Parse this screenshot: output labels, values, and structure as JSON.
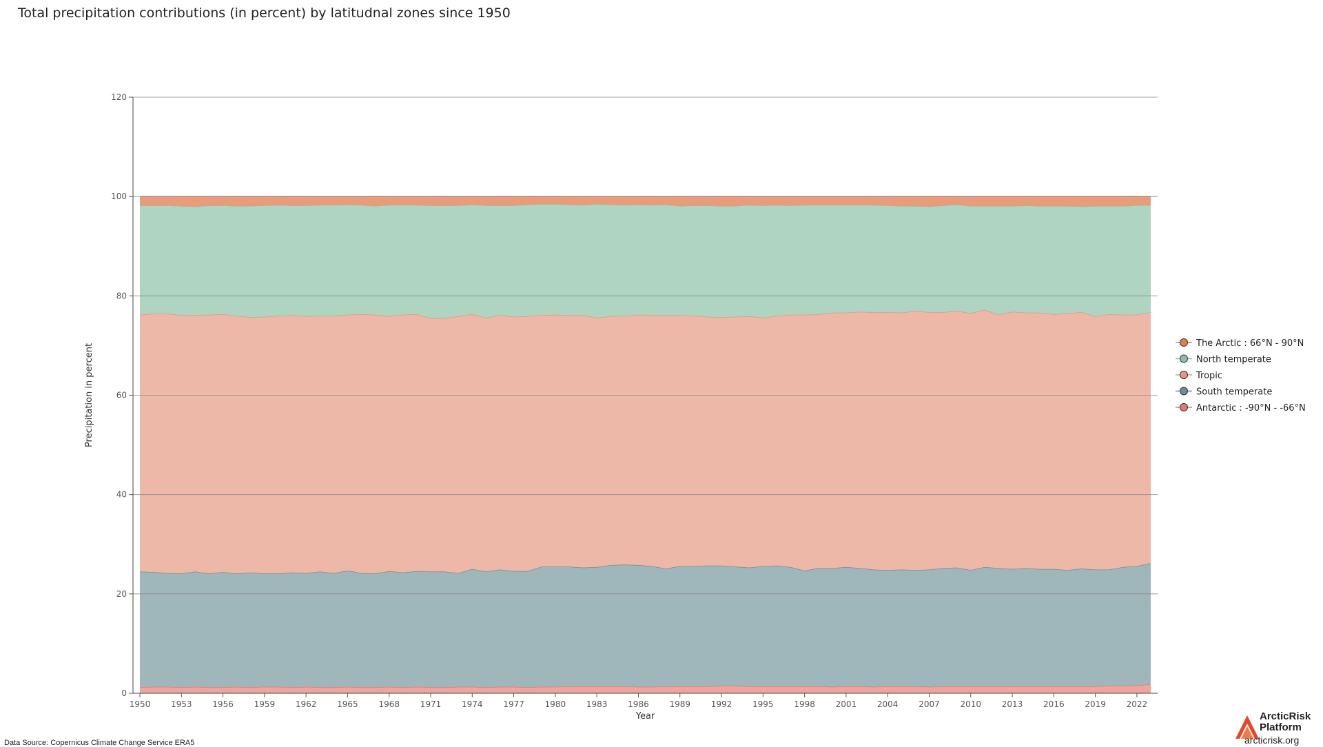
{
  "title": "Total precipitation contributions (in percent) by latitudnal zones since 1950",
  "source": "Data Source: Copernicus Climate Change Service ERA5",
  "brand": {
    "name_line1": "ArcticRisk",
    "name_line2": "Platform",
    "url": "arcticrisk.org"
  },
  "chart_data": {
    "type": "area",
    "stacked": true,
    "title": "Total precipitation contributions (in percent) by latitudnal zones since 1950",
    "xlabel": "Year",
    "ylabel": "Precipitation in percent",
    "xlim": [
      1950,
      2023
    ],
    "ylim": [
      0,
      120
    ],
    "yticks": [
      0,
      20,
      40,
      60,
      80,
      100,
      120
    ],
    "xticks": [
      1950,
      1953,
      1956,
      1959,
      1962,
      1965,
      1968,
      1971,
      1974,
      1977,
      1980,
      1983,
      1986,
      1989,
      1992,
      1995,
      1998,
      2001,
      2004,
      2007,
      2010,
      2013,
      2016,
      2019,
      2022
    ],
    "grid": true,
    "legend_position": "right",
    "x": [
      1950,
      1951,
      1952,
      1953,
      1954,
      1955,
      1956,
      1957,
      1958,
      1959,
      1960,
      1961,
      1962,
      1963,
      1964,
      1965,
      1966,
      1967,
      1968,
      1969,
      1970,
      1971,
      1972,
      1973,
      1974,
      1975,
      1976,
      1977,
      1978,
      1979,
      1980,
      1981,
      1982,
      1983,
      1984,
      1985,
      1986,
      1987,
      1988,
      1989,
      1990,
      1991,
      1992,
      1993,
      1994,
      1995,
      1996,
      1997,
      1998,
      1999,
      2000,
      2001,
      2002,
      2003,
      2004,
      2005,
      2006,
      2007,
      2008,
      2009,
      2010,
      2011,
      2012,
      2013,
      2014,
      2015,
      2016,
      2017,
      2018,
      2019,
      2020,
      2021,
      2022,
      2023
    ],
    "series": [
      {
        "name": "Antarctic : -90°N - -66°N",
        "color": "#e07b72",
        "fill": "#f0a49d",
        "values": [
          1.2,
          1.3,
          1.3,
          1.2,
          1.3,
          1.2,
          1.2,
          1.3,
          1.2,
          1.3,
          1.3,
          1.2,
          1.3,
          1.2,
          1.2,
          1.3,
          1.2,
          1.2,
          1.3,
          1.2,
          1.3,
          1.2,
          1.2,
          1.3,
          1.3,
          1.2,
          1.3,
          1.3,
          1.2,
          1.3,
          1.3,
          1.4,
          1.4,
          1.4,
          1.4,
          1.4,
          1.3,
          1.3,
          1.4,
          1.4,
          1.4,
          1.4,
          1.5,
          1.5,
          1.4,
          1.4,
          1.4,
          1.4,
          1.4,
          1.4,
          1.3,
          1.4,
          1.4,
          1.3,
          1.4,
          1.4,
          1.4,
          1.3,
          1.4,
          1.4,
          1.4,
          1.4,
          1.4,
          1.4,
          1.4,
          1.4,
          1.4,
          1.4,
          1.4,
          1.4,
          1.5,
          1.5,
          1.6,
          1.8
        ]
      },
      {
        "name": "South temperate",
        "color": "#6e8f96",
        "fill": "#9fb6ba",
        "values": [
          23.3,
          23.1,
          22.9,
          22.9,
          23.2,
          22.9,
          23.2,
          22.8,
          23.1,
          22.8,
          22.8,
          23.1,
          22.9,
          23.3,
          23.0,
          23.4,
          23.0,
          22.9,
          23.3,
          23.1,
          23.3,
          23.3,
          23.3,
          22.9,
          23.7,
          23.3,
          23.6,
          23.3,
          23.4,
          24.2,
          24.2,
          24.1,
          23.9,
          24.0,
          24.4,
          24.5,
          24.5,
          24.3,
          23.7,
          24.2,
          24.2,
          24.3,
          24.2,
          24.0,
          23.9,
          24.2,
          24.3,
          24.0,
          23.3,
          23.8,
          23.9,
          24.0,
          23.8,
          23.6,
          23.4,
          23.5,
          23.4,
          23.6,
          23.8,
          23.9,
          23.4,
          24.0,
          23.8,
          23.6,
          23.8,
          23.6,
          23.6,
          23.4,
          23.7,
          23.5,
          23.4,
          23.9,
          24.0,
          24.4
        ]
      },
      {
        "name": "Tropic",
        "color": "#e6957e",
        "fill": "#edb8a8",
        "values": [
          51.7,
          52.0,
          52.2,
          52.0,
          51.6,
          52.1,
          51.9,
          51.9,
          51.4,
          51.7,
          51.9,
          51.8,
          51.7,
          51.5,
          51.8,
          51.5,
          52.1,
          52.1,
          51.3,
          51.9,
          51.7,
          51.0,
          51.0,
          51.7,
          51.3,
          51.1,
          51.2,
          51.2,
          51.3,
          50.6,
          50.7,
          50.6,
          50.8,
          50.2,
          50.1,
          50.1,
          50.4,
          50.5,
          51.0,
          50.5,
          50.4,
          50.1,
          50.0,
          50.3,
          50.6,
          50.0,
          50.3,
          50.8,
          51.5,
          51.1,
          51.4,
          51.2,
          51.6,
          51.8,
          51.9,
          51.7,
          52.2,
          51.8,
          51.5,
          51.7,
          51.7,
          51.8,
          51.0,
          51.8,
          51.4,
          51.6,
          51.3,
          51.7,
          51.6,
          51.0,
          51.4,
          50.8,
          50.6,
          50.5
        ]
      },
      {
        "name": "North temperate",
        "color": "#86c4a8",
        "fill": "#afd4c2",
        "values": [
          22.0,
          21.8,
          21.8,
          22.0,
          21.9,
          22.0,
          21.9,
          22.1,
          22.4,
          22.4,
          22.3,
          22.1,
          22.3,
          22.3,
          22.3,
          22.2,
          22.0,
          21.9,
          22.4,
          22.1,
          22.0,
          22.7,
          22.7,
          22.3,
          22.1,
          22.6,
          22.1,
          22.4,
          22.5,
          22.4,
          22.3,
          22.3,
          22.2,
          22.9,
          22.5,
          22.3,
          22.2,
          22.2,
          22.3,
          22.0,
          22.2,
          22.4,
          22.4,
          22.3,
          22.4,
          22.6,
          22.3,
          22.0,
          22.1,
          22.0,
          21.7,
          21.7,
          21.5,
          21.6,
          21.5,
          21.5,
          21.1,
          21.3,
          21.5,
          21.4,
          21.6,
          20.9,
          21.9,
          21.3,
          21.6,
          21.5,
          21.8,
          21.6,
          21.3,
          22.2,
          21.8,
          21.9,
          22.0,
          21.6
        ]
      },
      {
        "name": "The Arctic : 66°N - 90°N",
        "color": "#e07e52",
        "fill": "#eb9a7a",
        "values": [
          1.8,
          1.8,
          1.8,
          1.9,
          2.0,
          1.8,
          1.8,
          1.9,
          1.9,
          1.8,
          1.7,
          1.8,
          1.8,
          1.7,
          1.7,
          1.6,
          1.7,
          1.9,
          1.7,
          1.7,
          1.7,
          1.8,
          1.8,
          1.8,
          1.6,
          1.8,
          1.8,
          1.8,
          1.6,
          1.5,
          1.5,
          1.6,
          1.7,
          1.5,
          1.6,
          1.7,
          1.6,
          1.7,
          1.6,
          1.9,
          1.8,
          1.8,
          1.9,
          1.9,
          1.7,
          1.8,
          1.7,
          1.8,
          1.7,
          1.7,
          1.7,
          1.7,
          1.7,
          1.7,
          1.8,
          1.9,
          1.9,
          2.0,
          1.8,
          1.6,
          1.9,
          1.9,
          1.9,
          1.9,
          1.8,
          1.9,
          1.9,
          1.9,
          2.0,
          1.9,
          1.9,
          1.9,
          1.8,
          1.7
        ]
      }
    ],
    "legend": [
      "The Arctic : 66°N - 90°N",
      "North temperate",
      "Tropic",
      "South temperate",
      "Antarctic : -90°N - -66°N"
    ]
  }
}
